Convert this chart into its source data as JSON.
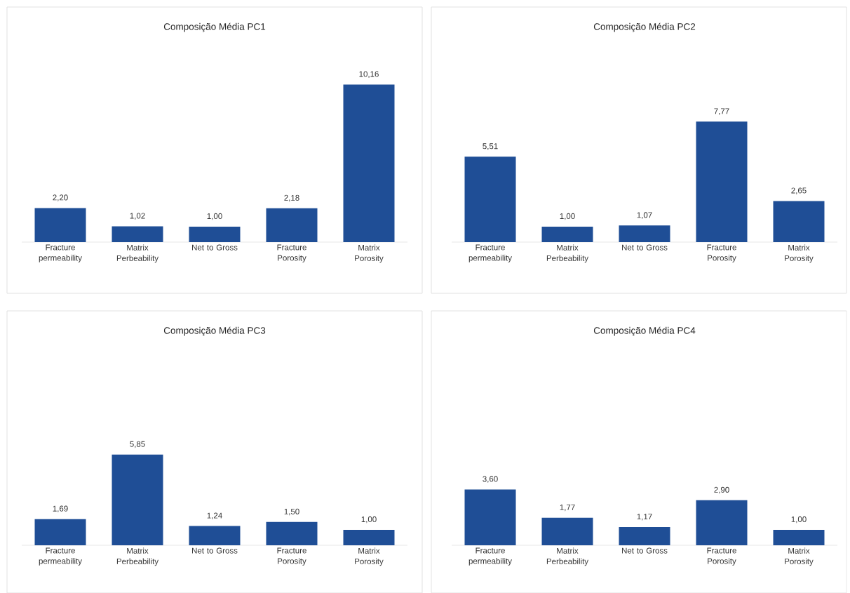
{
  "chart_data": [
    {
      "type": "bar",
      "title": "Composição Média PC1",
      "categories": [
        "Fracture permeability",
        "Matrix Perbeability",
        "Net to Gross",
        "Fracture Porosity",
        "Matrix Porosity"
      ],
      "values": [
        2.2,
        1.02,
        1.0,
        2.18,
        10.16
      ],
      "value_labels": [
        "2,20",
        "1,02",
        "1,00",
        "2,18",
        "10,16"
      ],
      "color": "#1f4e96"
    },
    {
      "type": "bar",
      "title": "Composição Média PC2",
      "categories": [
        "Fracture permeability",
        "Matrix Perbeability",
        "Net to Gross",
        "Fracture Porosity",
        "Matrix Porosity"
      ],
      "values": [
        5.51,
        1.0,
        1.07,
        7.77,
        2.65
      ],
      "value_labels": [
        "5,51",
        "1,00",
        "1,07",
        "7,77",
        "2,65"
      ],
      "color": "#1f4e96"
    },
    {
      "type": "bar",
      "title": "Composição Média PC3",
      "categories": [
        "Fracture permeability",
        "Matrix Perbeability",
        "Net to Gross",
        "Fracture Porosity",
        "Matrix Porosity"
      ],
      "values": [
        1.69,
        5.85,
        1.24,
        1.5,
        1.0
      ],
      "value_labels": [
        "1,69",
        "5,85",
        "1,24",
        "1,50",
        "1,00"
      ],
      "color": "#1f4e96"
    },
    {
      "type": "bar",
      "title": "Composição Média PC4",
      "categories": [
        "Fracture permeability",
        "Matrix Perbeability",
        "Net to Gross",
        "Fracture Porosity",
        "Matrix Porosity"
      ],
      "values": [
        3.6,
        1.77,
        1.17,
        2.9,
        1.0
      ],
      "value_labels": [
        "3,60",
        "1,77",
        "1,17",
        "2,90",
        "1,00"
      ],
      "color": "#1f4e96"
    }
  ]
}
